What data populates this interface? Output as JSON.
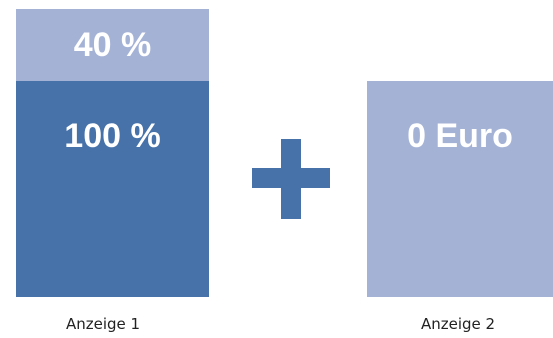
{
  "panel_1": {
    "top_value": "40 %",
    "main_value": "100 %",
    "caption": "Anzeige 1"
  },
  "panel_2": {
    "value": "0 Euro",
    "caption": "Anzeige 2"
  },
  "operator_icon": "plus-icon",
  "colors": {
    "dark_blue": "#4672a9",
    "light_blue": "#a4b2d6",
    "background": "#ffffff"
  }
}
